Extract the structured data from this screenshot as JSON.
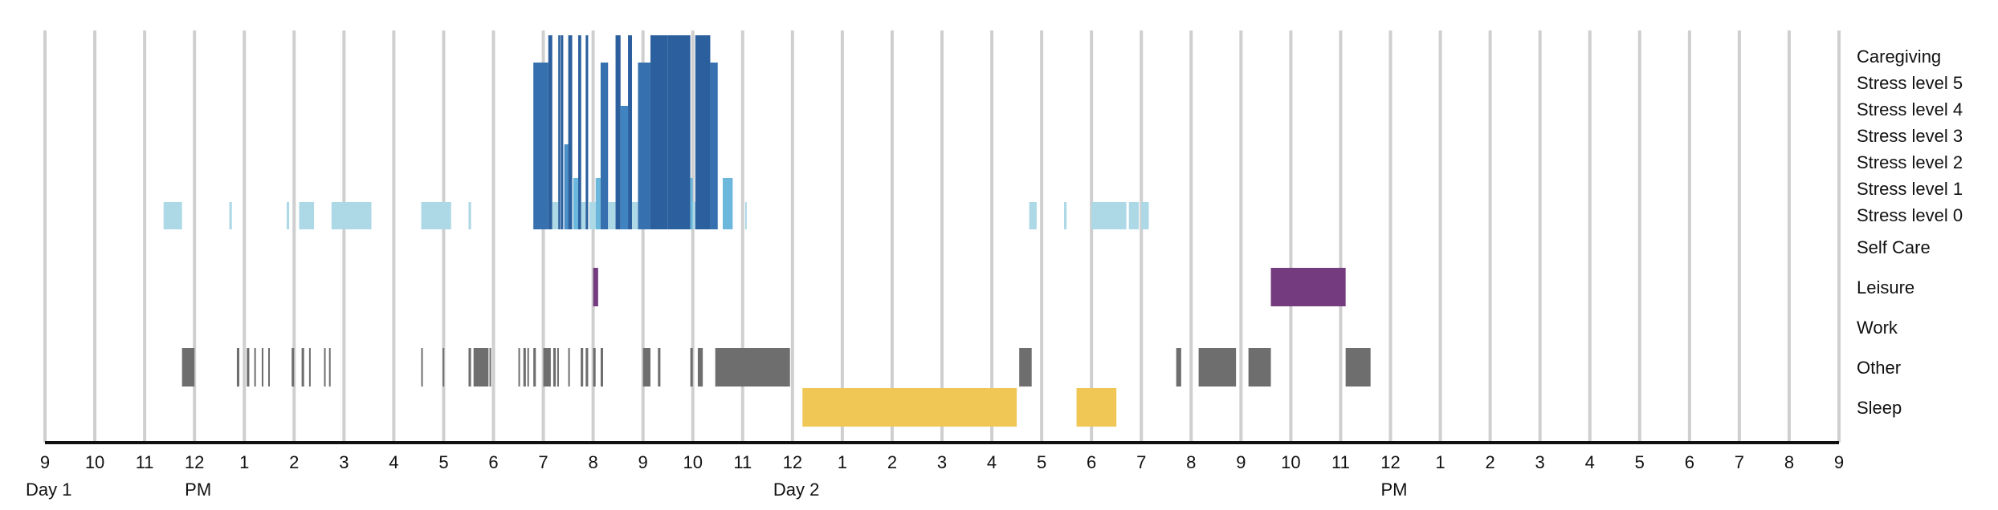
{
  "chart_data": {
    "type": "timeline",
    "x_unit": "hours since 9 AM Day 1",
    "x_range": [
      0,
      36
    ],
    "hour_tick_labels": [
      "9",
      "10",
      "11",
      "12",
      "1",
      "2",
      "3",
      "4",
      "5",
      "6",
      "7",
      "8",
      "9",
      "10",
      "11",
      "12",
      "1",
      "2",
      "3",
      "4",
      "5",
      "6",
      "7",
      "8",
      "9",
      "10",
      "11",
      "12",
      "1",
      "2",
      "3",
      "4",
      "5",
      "6",
      "7",
      "8",
      "9"
    ],
    "annotations": [
      {
        "text": "Day 1",
        "x": 0
      },
      {
        "text": "PM",
        "x": 3
      },
      {
        "text": "Day 2",
        "x": 15
      },
      {
        "text": "PM",
        "x": 27
      }
    ],
    "rows": [
      {
        "key": "caregiving",
        "label": "Caregiving"
      },
      {
        "key": "stress5",
        "label": "Stress level 5"
      },
      {
        "key": "stress4",
        "label": "Stress level 4"
      },
      {
        "key": "stress3",
        "label": "Stress level 3"
      },
      {
        "key": "stress2",
        "label": "Stress level 2"
      },
      {
        "key": "stress1",
        "label": "Stress level 1"
      },
      {
        "key": "stress0",
        "label": "Stress level 0"
      },
      {
        "key": "selfcare",
        "label": "Self Care"
      },
      {
        "key": "leisure",
        "label": "Leisure"
      },
      {
        "key": "work",
        "label": "Work"
      },
      {
        "key": "other",
        "label": "Other"
      },
      {
        "key": "sleep",
        "label": "Sleep"
      }
    ],
    "colors": {
      "stress0": "#add8e6",
      "stress1": "#6bb8dc",
      "stress2": "#4a8fc6",
      "stress3": "#3f84c0",
      "stress4": "#3670ae",
      "stress5": "#2b5f9e",
      "leisure": "#743b7e",
      "other": "#6e6e6e",
      "sleep": "#f0c654",
      "grid": "#cfcfcf",
      "axis": "#111111"
    },
    "stress_level_labels": [
      "Stress level 0",
      "Stress level 1",
      "Stress level 2",
      "Stress level 3",
      "Stress level 4",
      "Stress level 5"
    ],
    "stress_intervals": [
      {
        "start": 2.38,
        "end": 2.75,
        "level": 0
      },
      {
        "start": 3.7,
        "end": 3.75,
        "level": 0
      },
      {
        "start": 4.85,
        "end": 4.9,
        "level": 0
      },
      {
        "start": 5.1,
        "end": 5.4,
        "level": 0
      },
      {
        "start": 5.75,
        "end": 6.55,
        "level": 0
      },
      {
        "start": 7.55,
        "end": 8.15,
        "level": 0
      },
      {
        "start": 8.5,
        "end": 8.55,
        "level": 0
      },
      {
        "start": 9.8,
        "end": 10.1,
        "level": 4
      },
      {
        "start": 10.1,
        "end": 10.18,
        "level": 5
      },
      {
        "start": 10.18,
        "end": 10.3,
        "level": 0
      },
      {
        "start": 10.3,
        "end": 10.34,
        "level": 5
      },
      {
        "start": 10.35,
        "end": 10.4,
        "level": 5
      },
      {
        "start": 10.42,
        "end": 10.5,
        "level": 2
      },
      {
        "start": 10.5,
        "end": 10.58,
        "level": 5
      },
      {
        "start": 10.6,
        "end": 10.7,
        "level": 1
      },
      {
        "start": 10.7,
        "end": 10.76,
        "level": 5
      },
      {
        "start": 10.76,
        "end": 10.85,
        "level": 0
      },
      {
        "start": 10.85,
        "end": 10.9,
        "level": 5
      },
      {
        "start": 10.92,
        "end": 11.05,
        "level": 0
      },
      {
        "start": 11.05,
        "end": 11.15,
        "level": 1
      },
      {
        "start": 11.15,
        "end": 11.3,
        "level": 4
      },
      {
        "start": 11.3,
        "end": 11.45,
        "level": 0
      },
      {
        "start": 11.45,
        "end": 11.55,
        "level": 5
      },
      {
        "start": 11.55,
        "end": 11.7,
        "level": 3
      },
      {
        "start": 11.7,
        "end": 11.78,
        "level": 5
      },
      {
        "start": 11.78,
        "end": 11.9,
        "level": 0
      },
      {
        "start": 11.9,
        "end": 12.15,
        "level": 4
      },
      {
        "start": 12.15,
        "end": 12.5,
        "level": 5
      },
      {
        "start": 12.5,
        "end": 12.95,
        "level": 5
      },
      {
        "start": 12.95,
        "end": 13.0,
        "level": 1
      },
      {
        "start": 13.0,
        "end": 13.05,
        "level": 0
      },
      {
        "start": 13.05,
        "end": 13.35,
        "level": 5
      },
      {
        "start": 13.35,
        "end": 13.5,
        "level": 4
      },
      {
        "start": 13.6,
        "end": 13.8,
        "level": 1
      },
      {
        "start": 14.05,
        "end": 14.08,
        "level": 0
      },
      {
        "start": 19.75,
        "end": 19.9,
        "level": 0
      },
      {
        "start": 20.45,
        "end": 20.5,
        "level": 0
      },
      {
        "start": 21.0,
        "end": 21.7,
        "level": 0
      },
      {
        "start": 21.75,
        "end": 21.95,
        "level": 0
      },
      {
        "start": 22.0,
        "end": 22.15,
        "level": 0
      }
    ],
    "activity_intervals": [
      {
        "row": "leisure",
        "start": 11.0,
        "end": 11.1
      },
      {
        "row": "leisure",
        "start": 24.6,
        "end": 26.1
      },
      {
        "row": "other",
        "start": 2.75,
        "end": 3.0
      },
      {
        "row": "other",
        "start": 3.85,
        "end": 3.9
      },
      {
        "row": "other",
        "start": 4.05,
        "end": 4.1
      },
      {
        "row": "other",
        "start": 4.2,
        "end": 4.23
      },
      {
        "row": "other",
        "start": 4.35,
        "end": 4.38
      },
      {
        "row": "other",
        "start": 4.48,
        "end": 4.5
      },
      {
        "row": "other",
        "start": 4.95,
        "end": 5.0
      },
      {
        "row": "other",
        "start": 5.15,
        "end": 5.2
      },
      {
        "row": "other",
        "start": 5.3,
        "end": 5.32
      },
      {
        "row": "other",
        "start": 5.6,
        "end": 5.63
      },
      {
        "row": "other",
        "start": 5.7,
        "end": 5.73
      },
      {
        "row": "other",
        "start": 7.55,
        "end": 7.57
      },
      {
        "row": "other",
        "start": 7.98,
        "end": 8.0
      },
      {
        "row": "other",
        "start": 8.5,
        "end": 8.55
      },
      {
        "row": "other",
        "start": 8.6,
        "end": 8.9
      },
      {
        "row": "other",
        "start": 8.92,
        "end": 8.95
      },
      {
        "row": "other",
        "start": 9.5,
        "end": 9.53
      },
      {
        "row": "other",
        "start": 9.6,
        "end": 9.65
      },
      {
        "row": "other",
        "start": 9.68,
        "end": 9.7
      },
      {
        "row": "other",
        "start": 9.8,
        "end": 9.85
      },
      {
        "row": "other",
        "start": 10.0,
        "end": 10.15
      },
      {
        "row": "other",
        "start": 10.2,
        "end": 10.25
      },
      {
        "row": "other",
        "start": 10.28,
        "end": 10.3
      },
      {
        "row": "other",
        "start": 10.5,
        "end": 10.53
      },
      {
        "row": "other",
        "start": 10.75,
        "end": 10.8
      },
      {
        "row": "other",
        "start": 10.85,
        "end": 10.9
      },
      {
        "row": "other",
        "start": 11.0,
        "end": 11.05
      },
      {
        "row": "other",
        "start": 11.15,
        "end": 11.2
      },
      {
        "row": "other",
        "start": 12.0,
        "end": 12.15
      },
      {
        "row": "other",
        "start": 12.3,
        "end": 12.35
      },
      {
        "row": "other",
        "start": 12.95,
        "end": 13.0
      },
      {
        "row": "other",
        "start": 13.1,
        "end": 13.2
      },
      {
        "row": "other",
        "start": 13.45,
        "end": 14.95
      },
      {
        "row": "other",
        "start": 19.55,
        "end": 19.8
      },
      {
        "row": "other",
        "start": 22.7,
        "end": 22.8
      },
      {
        "row": "other",
        "start": 23.15,
        "end": 23.9
      },
      {
        "row": "other",
        "start": 24.15,
        "end": 24.6
      },
      {
        "row": "other",
        "start": 26.1,
        "end": 26.6
      },
      {
        "row": "sleep",
        "start": 15.2,
        "end": 19.5
      },
      {
        "row": "sleep",
        "start": 20.7,
        "end": 21.5
      }
    ]
  }
}
